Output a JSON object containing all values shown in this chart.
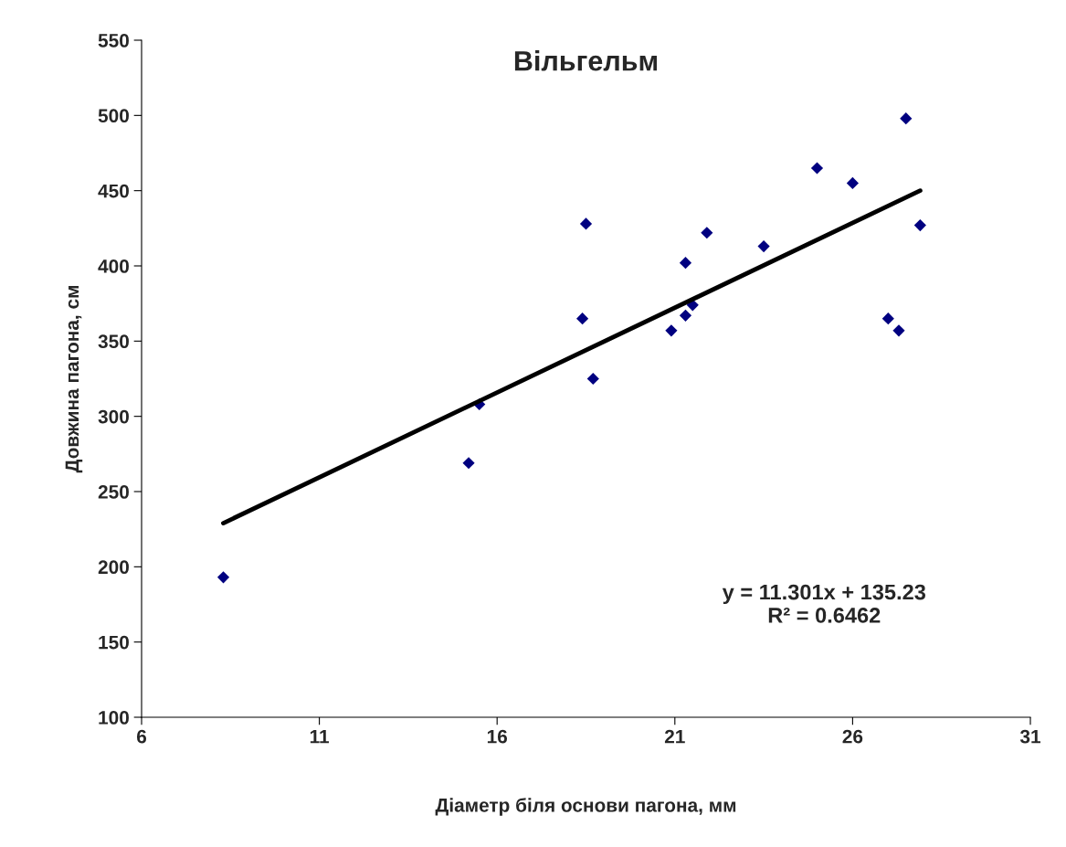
{
  "chart_data": {
    "type": "scatter",
    "title": "Вільгельм",
    "xlabel": "Діаметр біля основи пагона, мм",
    "ylabel": "Довжина пагона, см",
    "series": [
      {
        "color": "#000080",
        "marker": "diamond",
        "x": [
          8.3,
          15.2,
          15.5,
          18.4,
          18.5,
          18.7,
          20.9,
          21.3,
          21.3,
          21.5,
          21.9,
          23.5,
          25.0,
          26.0,
          27.0,
          27.3,
          27.5,
          27.9
        ],
        "values": [
          193,
          269,
          308,
          365,
          428,
          325,
          357,
          402,
          367,
          374,
          422,
          413,
          465,
          455,
          365,
          357,
          498,
          427
        ]
      },
      {
        "type": "line",
        "color": "#000000",
        "marker": "none",
        "x": [
          8.3,
          27.9
        ],
        "values": [
          229,
          450
        ]
      }
    ],
    "annotations": [
      "y = 11.301x + 135.23\nR² = 0.6462"
    ],
    "xlim": [
      6,
      31
    ],
    "xticks": [
      6,
      11,
      16,
      21,
      26,
      31
    ],
    "ylim": [
      100,
      550
    ],
    "yticks": [
      100,
      150,
      200,
      250,
      300,
      350,
      400,
      450,
      500,
      550
    ],
    "grid": false,
    "legend": false
  }
}
